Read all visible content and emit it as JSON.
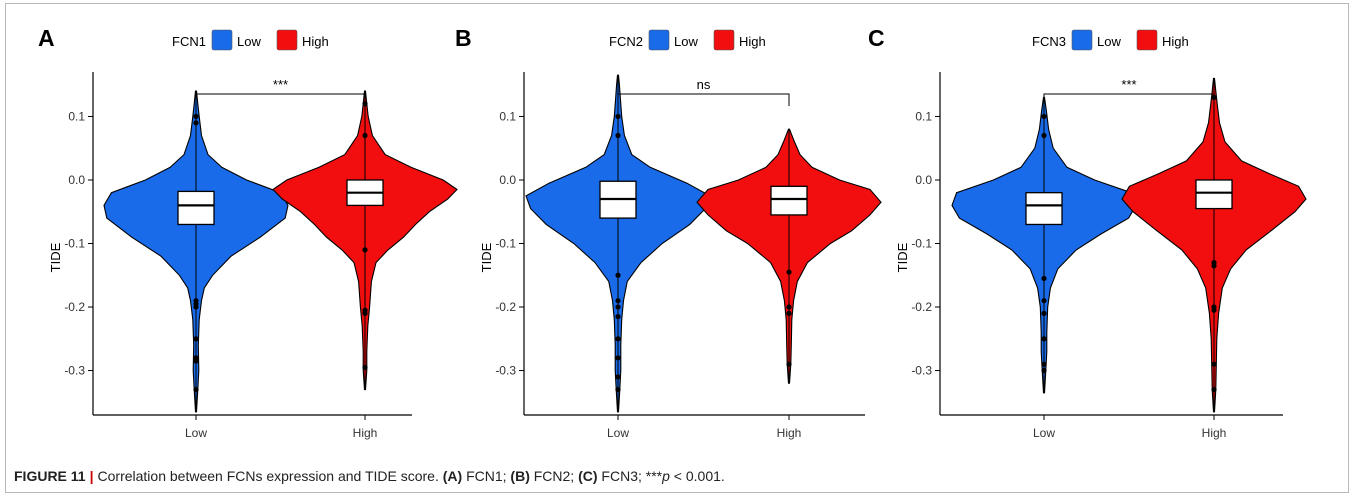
{
  "colors": {
    "low": "#1a6bea",
    "high": "#f20e0e"
  },
  "chart_data": [
    {
      "type": "violin",
      "panel": "A",
      "legend_title": "FCN1",
      "legend_entries": [
        "Low",
        "High"
      ],
      "categories": [
        "Low",
        "High"
      ],
      "ylabel": "TIDE",
      "ylim": [
        -0.37,
        0.17
      ],
      "yticks": [
        -0.3,
        -0.2,
        -0.1,
        0.0,
        0.1
      ],
      "ytick_labels": [
        "-0.3",
        "-0.2",
        "-0.1",
        "0.0",
        "0.1"
      ],
      "significance": "***",
      "series": [
        {
          "name": "Low",
          "min": -0.365,
          "max": 0.14,
          "q1": -0.07,
          "median": -0.04,
          "q3": -0.018,
          "whisker_low": -0.155,
          "whisker_high": 0.045,
          "density": [
            [
              -0.365,
              0.005
            ],
            [
              -0.33,
              0.02
            ],
            [
              -0.3,
              0.03
            ],
            [
              -0.26,
              0.025
            ],
            [
              -0.22,
              0.035
            ],
            [
              -0.19,
              0.06
            ],
            [
              -0.17,
              0.09
            ],
            [
              -0.15,
              0.18
            ],
            [
              -0.12,
              0.38
            ],
            [
              -0.09,
              0.7
            ],
            [
              -0.06,
              0.97
            ],
            [
              -0.04,
              1.0
            ],
            [
              -0.02,
              0.92
            ],
            [
              0.0,
              0.55
            ],
            [
              0.02,
              0.28
            ],
            [
              0.04,
              0.13
            ],
            [
              0.07,
              0.06
            ],
            [
              0.1,
              0.035
            ],
            [
              0.12,
              0.02
            ],
            [
              0.14,
              0.005
            ]
          ],
          "outliers": [
            -0.19,
            -0.195,
            -0.2,
            -0.25,
            -0.28,
            -0.285,
            -0.33,
            0.09,
            0.1
          ]
        },
        {
          "name": "High",
          "min": -0.33,
          "max": 0.14,
          "q1": -0.04,
          "median": -0.02,
          "q3": 0.0,
          "whisker_low": -0.115,
          "whisker_high": 0.06,
          "density": [
            [
              -0.33,
              0.005
            ],
            [
              -0.3,
              0.02
            ],
            [
              -0.27,
              0.02
            ],
            [
              -0.23,
              0.03
            ],
            [
              -0.2,
              0.05
            ],
            [
              -0.16,
              0.07
            ],
            [
              -0.13,
              0.12
            ],
            [
              -0.11,
              0.25
            ],
            [
              -0.09,
              0.42
            ],
            [
              -0.07,
              0.55
            ],
            [
              -0.05,
              0.7
            ],
            [
              -0.03,
              0.9
            ],
            [
              -0.015,
              1.0
            ],
            [
              0.0,
              0.85
            ],
            [
              0.02,
              0.5
            ],
            [
              0.04,
              0.22
            ],
            [
              0.07,
              0.08
            ],
            [
              0.1,
              0.035
            ],
            [
              0.12,
              0.02
            ],
            [
              0.14,
              0.005
            ]
          ],
          "outliers": [
            -0.11,
            -0.205,
            -0.21,
            -0.295,
            0.07,
            0.12
          ]
        }
      ]
    },
    {
      "type": "violin",
      "panel": "B",
      "legend_title": "FCN2",
      "legend_entries": [
        "Low",
        "High"
      ],
      "categories": [
        "Low",
        "High"
      ],
      "ylabel": "TIDE",
      "ylim": [
        -0.37,
        0.17
      ],
      "yticks": [
        -0.3,
        -0.2,
        -0.1,
        0.0,
        0.1
      ],
      "ytick_labels": [
        "-0.3",
        "-0.2",
        "-0.1",
        "0.0",
        "0.1"
      ],
      "significance": "ns",
      "series": [
        {
          "name": "Low",
          "min": -0.365,
          "max": 0.165,
          "q1": -0.06,
          "median": -0.03,
          "q3": -0.002,
          "whisker_low": -0.14,
          "whisker_high": 0.08,
          "density": [
            [
              -0.365,
              0.005
            ],
            [
              -0.33,
              0.02
            ],
            [
              -0.3,
              0.03
            ],
            [
              -0.26,
              0.03
            ],
            [
              -0.22,
              0.04
            ],
            [
              -0.19,
              0.06
            ],
            [
              -0.16,
              0.1
            ],
            [
              -0.13,
              0.25
            ],
            [
              -0.1,
              0.48
            ],
            [
              -0.07,
              0.78
            ],
            [
              -0.045,
              0.95
            ],
            [
              -0.025,
              1.0
            ],
            [
              -0.005,
              0.75
            ],
            [
              0.02,
              0.35
            ],
            [
              0.04,
              0.15
            ],
            [
              0.07,
              0.07
            ],
            [
              0.1,
              0.04
            ],
            [
              0.13,
              0.025
            ],
            [
              0.15,
              0.015
            ],
            [
              0.165,
              0.005
            ]
          ],
          "outliers": [
            -0.15,
            -0.19,
            -0.2,
            -0.215,
            -0.25,
            -0.28,
            -0.31,
            -0.33,
            0.07,
            0.1
          ]
        },
        {
          "name": "High",
          "min": -0.32,
          "max": 0.08,
          "q1": -0.055,
          "median": -0.03,
          "q3": -0.01,
          "whisker_low": -0.14,
          "whisker_high": 0.035,
          "density": [
            [
              -0.32,
              0.005
            ],
            [
              -0.29,
              0.02
            ],
            [
              -0.26,
              0.025
            ],
            [
              -0.22,
              0.03
            ],
            [
              -0.19,
              0.05
            ],
            [
              -0.16,
              0.09
            ],
            [
              -0.13,
              0.2
            ],
            [
              -0.1,
              0.45
            ],
            [
              -0.08,
              0.68
            ],
            [
              -0.055,
              0.88
            ],
            [
              -0.035,
              1.0
            ],
            [
              -0.015,
              0.88
            ],
            [
              0.0,
              0.55
            ],
            [
              0.02,
              0.25
            ],
            [
              0.04,
              0.12
            ],
            [
              0.06,
              0.06
            ],
            [
              0.08,
              0.005
            ]
          ],
          "outliers": [
            -0.145,
            -0.2,
            -0.21,
            -0.29
          ]
        }
      ]
    },
    {
      "type": "violin",
      "panel": "C",
      "legend_title": "FCN3",
      "legend_entries": [
        "Low",
        "High"
      ],
      "categories": [
        "Low",
        "High"
      ],
      "ylabel": "TIDE",
      "ylim": [
        -0.37,
        0.17
      ],
      "yticks": [
        -0.3,
        -0.2,
        -0.1,
        0.0,
        0.1
      ],
      "ytick_labels": [
        "-0.3",
        "-0.2",
        "-0.1",
        "0.0",
        "0.1"
      ],
      "significance": "***",
      "series": [
        {
          "name": "Low",
          "min": -0.335,
          "max": 0.13,
          "q1": -0.07,
          "median": -0.04,
          "q3": -0.02,
          "whisker_low": -0.14,
          "whisker_high": 0.04,
          "density": [
            [
              -0.335,
              0.005
            ],
            [
              -0.3,
              0.02
            ],
            [
              -0.27,
              0.03
            ],
            [
              -0.24,
              0.03
            ],
            [
              -0.2,
              0.04
            ],
            [
              -0.17,
              0.07
            ],
            [
              -0.14,
              0.15
            ],
            [
              -0.11,
              0.35
            ],
            [
              -0.085,
              0.62
            ],
            [
              -0.06,
              0.92
            ],
            [
              -0.04,
              1.0
            ],
            [
              -0.02,
              0.95
            ],
            [
              0.0,
              0.55
            ],
            [
              0.02,
              0.25
            ],
            [
              0.05,
              0.1
            ],
            [
              0.08,
              0.05
            ],
            [
              0.11,
              0.025
            ],
            [
              0.13,
              0.005
            ]
          ],
          "outliers": [
            -0.155,
            -0.19,
            -0.21,
            -0.25,
            -0.29,
            -0.3,
            0.07,
            0.1
          ]
        },
        {
          "name": "High",
          "min": -0.365,
          "max": 0.16,
          "q1": -0.045,
          "median": -0.02,
          "q3": 0.0,
          "whisker_low": -0.13,
          "whisker_high": 0.05,
          "density": [
            [
              -0.365,
              0.005
            ],
            [
              -0.33,
              0.02
            ],
            [
              -0.29,
              0.025
            ],
            [
              -0.25,
              0.03
            ],
            [
              -0.21,
              0.05
            ],
            [
              -0.17,
              0.09
            ],
            [
              -0.14,
              0.18
            ],
            [
              -0.11,
              0.35
            ],
            [
              -0.08,
              0.62
            ],
            [
              -0.05,
              0.88
            ],
            [
              -0.03,
              1.0
            ],
            [
              -0.01,
              0.92
            ],
            [
              0.01,
              0.6
            ],
            [
              0.03,
              0.3
            ],
            [
              0.06,
              0.12
            ],
            [
              0.09,
              0.06
            ],
            [
              0.12,
              0.035
            ],
            [
              0.14,
              0.02
            ],
            [
              0.16,
              0.005
            ]
          ],
          "outliers": [
            -0.13,
            -0.135,
            -0.2,
            -0.205,
            -0.29,
            -0.33,
            0.13
          ]
        }
      ]
    }
  ],
  "caption": {
    "label": "FIGURE 11",
    "text": "Correlation between FCNs expression and TIDE score.",
    "parts": [
      {
        "bold": "(A)",
        "text": " FCN1; "
      },
      {
        "bold": "(B)",
        "text": " FCN2; "
      },
      {
        "bold": "(C)",
        "text": " FCN3; "
      }
    ],
    "pvalue_prefix": "***",
    "pvalue_var": "p",
    "pvalue_rest": " < 0.001."
  }
}
